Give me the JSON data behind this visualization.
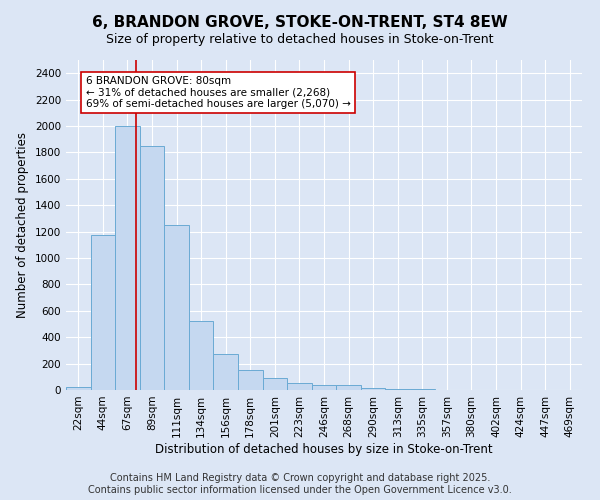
{
  "title": "6, BRANDON GROVE, STOKE-ON-TRENT, ST4 8EW",
  "subtitle": "Size of property relative to detached houses in Stoke-on-Trent",
  "xlabel": "Distribution of detached houses by size in Stoke-on-Trent",
  "ylabel": "Number of detached properties",
  "categories": [
    "22sqm",
    "44sqm",
    "67sqm",
    "89sqm",
    "111sqm",
    "134sqm",
    "156sqm",
    "178sqm",
    "201sqm",
    "223sqm",
    "246sqm",
    "268sqm",
    "290sqm",
    "313sqm",
    "335sqm",
    "357sqm",
    "380sqm",
    "402sqm",
    "424sqm",
    "447sqm",
    "469sqm"
  ],
  "values": [
    20,
    1175,
    2000,
    1850,
    1250,
    520,
    275,
    155,
    90,
    50,
    40,
    35,
    15,
    8,
    5,
    3,
    2,
    2,
    1,
    1,
    0
  ],
  "bar_color": "#c5d8f0",
  "bar_edge_color": "#6aaad4",
  "bar_edge_width": 0.7,
  "ylim": [
    0,
    2500
  ],
  "yticks": [
    0,
    200,
    400,
    600,
    800,
    1000,
    1200,
    1400,
    1600,
    1800,
    2000,
    2200,
    2400
  ],
  "vline_x": 2.36,
  "vline_color": "#cc0000",
  "annotation_text": "6 BRANDON GROVE: 80sqm\n← 31% of detached houses are smaller (2,268)\n69% of semi-detached houses are larger (5,070) →",
  "annotation_box_color": "#ffffff",
  "annotation_box_edgecolor": "#cc0000",
  "footer_line1": "Contains HM Land Registry data © Crown copyright and database right 2025.",
  "footer_line2": "Contains public sector information licensed under the Open Government Licence v3.0.",
  "background_color": "#dce6f5",
  "plot_bg_color": "#dce6f5",
  "title_fontsize": 11,
  "subtitle_fontsize": 9,
  "footer_fontsize": 7,
  "tick_fontsize": 7.5,
  "ylabel_fontsize": 8.5,
  "xlabel_fontsize": 8.5
}
